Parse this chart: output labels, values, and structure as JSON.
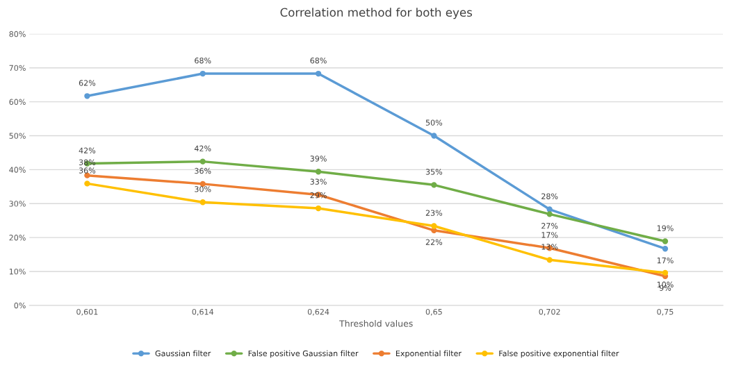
{
  "chart_data": {
    "type": "line",
    "title": "Correlation method for both eyes",
    "xlabel": "Threshold values",
    "categories": [
      "0,601",
      "0,614",
      "0,624",
      "0,65",
      "0,702",
      "0,75"
    ],
    "series": [
      {
        "name": "Gaussian filter",
        "color": "#5b9bd5",
        "values": [
          61.7,
          68.3,
          68.3,
          50,
          28.3,
          16.7
        ],
        "value_labels": [
          "62%",
          "68%",
          "68%",
          "50%",
          "28%",
          "17%"
        ]
      },
      {
        "name": "False positive Gaussian filter",
        "color": "#70ad47",
        "values": [
          41.8,
          42.4,
          39.4,
          35.5,
          26.9,
          18.9
        ],
        "value_labels": [
          "42%",
          "42%",
          "39%",
          "35%",
          "27%",
          "19%"
        ]
      },
      {
        "name": "Exponential filter",
        "color": "#ed7d31",
        "values": [
          38.3,
          35.8,
          32.6,
          22.1,
          16.9,
          8.6
        ],
        "value_labels": [
          "38%",
          "36%",
          "33%",
          "22%",
          "17%",
          "9%"
        ]
      },
      {
        "name": "False positive exponential filter",
        "color": "#ffc000",
        "values": [
          35.9,
          30.4,
          28.6,
          23.4,
          13.4,
          9.6
        ],
        "value_labels": [
          "36%",
          "30%",
          "29%",
          "23%",
          "13%",
          "10%"
        ]
      }
    ],
    "ylim": [
      0,
      80
    ],
    "yticks": [
      {
        "value": 0,
        "label": "0%"
      },
      {
        "value": 10,
        "label": "10%"
      },
      {
        "value": 20,
        "label": "20%"
      },
      {
        "value": 30,
        "label": "30%"
      },
      {
        "value": 40,
        "label": "40%"
      },
      {
        "value": 50,
        "label": "50%"
      },
      {
        "value": 60,
        "label": "60%"
      },
      {
        "value": 70,
        "label": "70%"
      },
      {
        "value": 80,
        "label": "80%"
      }
    ],
    "grid": "y",
    "legend": "bottom",
    "marker": "circle",
    "line_style": "solid"
  }
}
